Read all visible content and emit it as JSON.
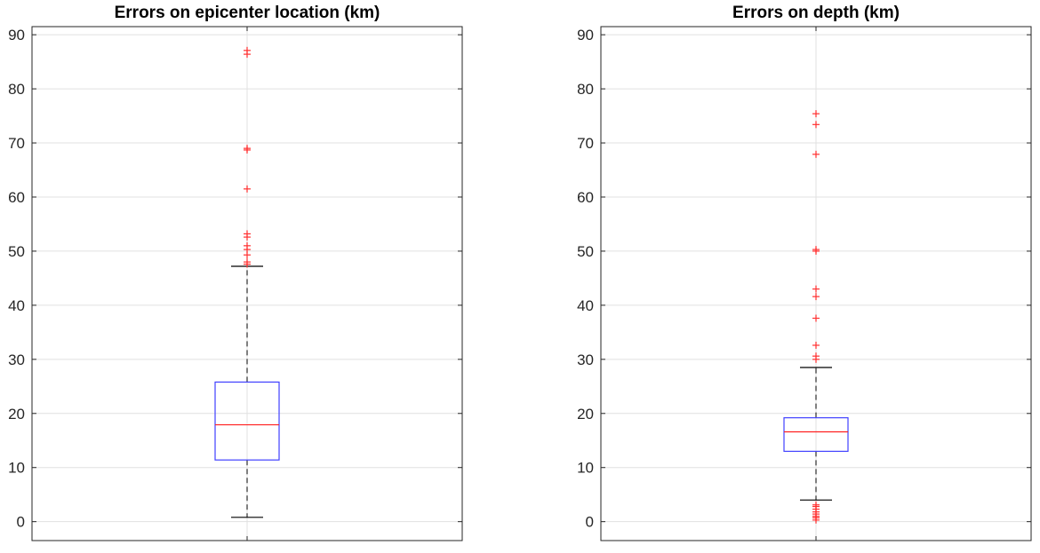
{
  "chart_data": [
    {
      "type": "box",
      "title": "Errors on epicenter location (km)",
      "xlabel": "",
      "ylabel": "",
      "ylim": [
        -3.5,
        91.5
      ],
      "yticks": [
        0,
        10,
        20,
        30,
        40,
        50,
        60,
        70,
        80,
        90
      ],
      "grid": true,
      "box": {
        "lower_whisker": 0.8,
        "q1": 11.4,
        "median": 17.9,
        "q3": 25.8,
        "upper_whisker": 47.2
      },
      "outliers": [
        47.6,
        48.0,
        49.3,
        50.3,
        51.0,
        52.6,
        53.2,
        61.5,
        68.7,
        69.0,
        86.4,
        87.1
      ]
    },
    {
      "type": "box",
      "title": "Errors on depth (km)",
      "xlabel": "",
      "ylabel": "",
      "ylim": [
        -3.5,
        91.5
      ],
      "yticks": [
        0,
        10,
        20,
        30,
        40,
        50,
        60,
        70,
        80,
        90
      ],
      "grid": true,
      "box": {
        "lower_whisker": 4.0,
        "q1": 13.0,
        "median": 16.6,
        "q3": 19.2,
        "upper_whisker": 28.5
      },
      "outliers": [
        0.3,
        0.7,
        1.0,
        1.4,
        1.8,
        2.3,
        2.8,
        3.1,
        30.0,
        30.6,
        32.6,
        37.6,
        41.6,
        43.0,
        50.0,
        50.3,
        67.9,
        73.4,
        75.4
      ]
    }
  ],
  "colors": {
    "box": "#4040ff",
    "median": "#ff2020",
    "outlier": "#ff3030",
    "whisker": "#000000",
    "grid": "#e0e0e0",
    "axis": "#262626"
  }
}
